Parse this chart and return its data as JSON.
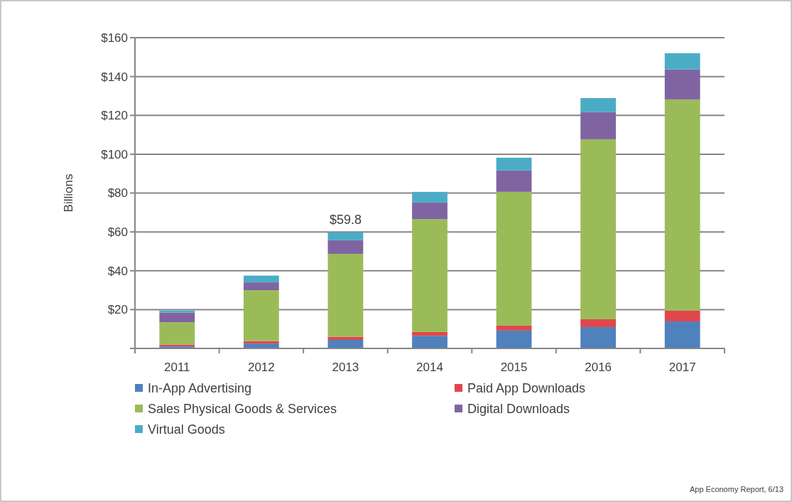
{
  "chart_data": {
    "type": "bar",
    "stacked": true,
    "ylabel": "Billions",
    "categories": [
      "2011",
      "2012",
      "2013",
      "2014",
      "2015",
      "2016",
      "2017"
    ],
    "series": [
      {
        "name": "In-App Advertising",
        "color": "#4f81bd",
        "values": [
          1.0,
          2.5,
          4.4,
          6.5,
          9.2,
          11.0,
          13.9
        ]
      },
      {
        "name": "Paid App Downloads",
        "color": "#e0474c",
        "values": [
          1.0,
          1.3,
          1.6,
          2.0,
          2.5,
          4.0,
          5.5
        ]
      },
      {
        "name": "Sales Physical Goods & Services",
        "color": "#9bbb59",
        "values": [
          11.5,
          26.2,
          42.7,
          58.1,
          68.9,
          92.7,
          108.8
        ]
      },
      {
        "name": "Digital Downloads",
        "color": "#8064a2",
        "values": [
          5.0,
          4.0,
          7.0,
          8.5,
          11.0,
          13.9,
          15.4
        ]
      },
      {
        "name": "Virtual Goods",
        "color": "#4bacc6",
        "values": [
          1.0,
          3.5,
          4.1,
          5.5,
          6.6,
          7.3,
          8.4
        ]
      }
    ],
    "ylim": [
      0,
      160
    ],
    "yticks": [
      {
        "value": 0,
        "label": null
      },
      {
        "value": 20,
        "label": "$20"
      },
      {
        "value": 40,
        "label": "$40"
      },
      {
        "value": 60,
        "label": "$60"
      },
      {
        "value": 80,
        "label": "$80"
      },
      {
        "value": 100,
        "label": "$100"
      },
      {
        "value": 120,
        "label": "$120"
      },
      {
        "value": 140,
        "label": "$140"
      },
      {
        "value": 160,
        "label": "$160"
      }
    ],
    "grid": "y",
    "legend": "bottom",
    "annotations": [
      {
        "text": "$59.8",
        "x": "2013",
        "y": 59.8
      },
      "App Economy Report, 6/13"
    ]
  }
}
